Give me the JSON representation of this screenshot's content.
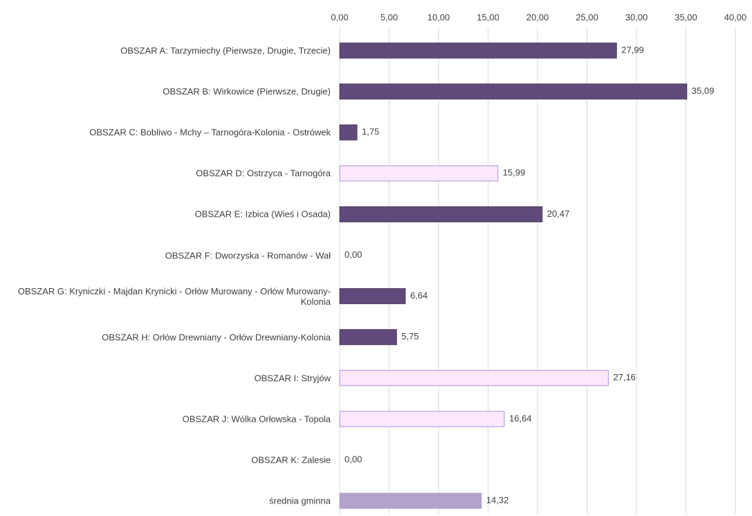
{
  "chart_data": {
    "type": "barh",
    "categories": [
      "OBSZAR A: Tarzymiechy (Pierwsze, Drugie, Trzecie)",
      "OBSZAR B: Wirkowice (Pierwsze, Drugie)",
      "OBSZAR C: Bobliwo - Mchy – Tarnogóra-Kolonia - Ostrówek",
      "OBSZAR D: Ostrzyca - Tarnogóra",
      "OBSZAR E: Izbica (Wieś i Osada)",
      "OBSZAR F: Dworzyska - Romanów - Wał",
      "OBSZAR G: Kryniczki - Majdan Krynicki - Orłów Murowany - Orłów Murowany-Kolonia",
      "OBSZAR H: Orłów Drewniany - Orłów Drewniany-Kolonia",
      "OBSZAR I: Stryjów",
      "OBSZAR J: Wólka Orłowska - Topola",
      "OBSZAR K: Zalesie",
      "średnia gminna"
    ],
    "values": [
      27.99,
      35.09,
      1.75,
      15.99,
      20.47,
      0,
      6.64,
      5.75,
      27.16,
      16.64,
      0,
      14.32
    ],
    "value_labels": [
      "27,99",
      "35,09",
      "1,75",
      "15,99",
      "20,47",
      "0,00",
      "6,64",
      "5,75",
      "27,16",
      "16,64",
      "0,00",
      "14,32"
    ],
    "colors": [
      "#604a7b",
      "#604a7b",
      "#604a7b",
      "#fbe8fc",
      "#604a7b",
      "#604a7b",
      "#604a7b",
      "#604a7b",
      "#fbe8fc",
      "#fbe8fc",
      "#604a7b",
      "#b3a2cc"
    ],
    "edgecolors": [
      "#4f3d66",
      "#4f3d66",
      "#4f3d66",
      "#b08fe0",
      "#4f3d66",
      "#4f3d66",
      "#4f3d66",
      "#4f3d66",
      "#b08fe0",
      "#b08fe0",
      "#4f3d66",
      "#b3a2cc"
    ],
    "xlim": [
      0,
      40
    ],
    "xticks": [
      {
        "value": 0,
        "label": "0,00"
      },
      {
        "value": 5,
        "label": "5,00"
      },
      {
        "value": 10,
        "label": "10,00"
      },
      {
        "value": 15,
        "label": "15,00"
      },
      {
        "value": 20,
        "label": "20,00"
      },
      {
        "value": 25,
        "label": "25,00"
      },
      {
        "value": 30,
        "label": "30,00"
      },
      {
        "value": 35,
        "label": "35,00"
      },
      {
        "value": 40,
        "label": "40,00"
      }
    ],
    "grid": true
  }
}
